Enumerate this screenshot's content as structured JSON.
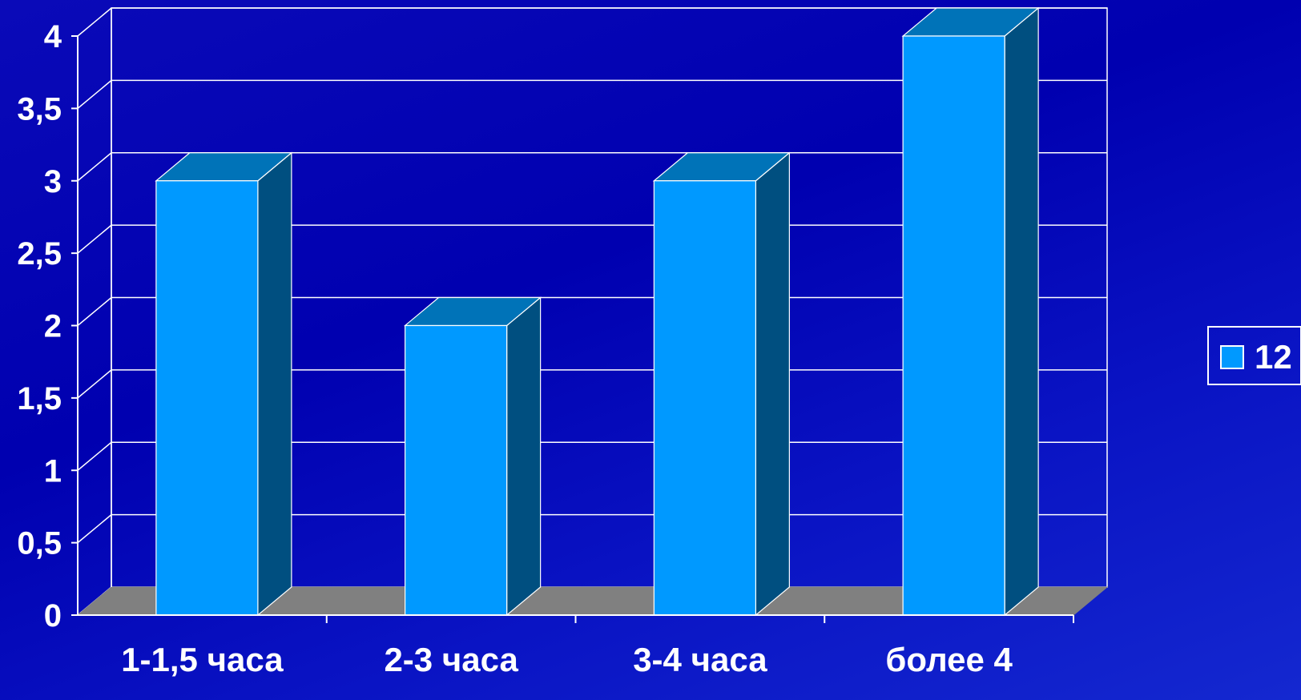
{
  "chart_data": {
    "type": "bar",
    "categories": [
      "1-1,5 часа",
      "2-3 часа",
      "3-4 часа",
      "более 4"
    ],
    "series": [
      {
        "name": "12",
        "values": [
          3,
          2,
          3,
          4
        ]
      }
    ],
    "y_ticks": [
      "0",
      "0,5",
      "1",
      "1,5",
      "2",
      "2,5",
      "3",
      "3,5",
      "4"
    ],
    "ylim": [
      0,
      4
    ],
    "grid": true,
    "legend_position": "right",
    "colors": {
      "bar_front": "#0099ff",
      "bar_top": "#0073b8",
      "bar_side": "#004f80",
      "floor": "#808080",
      "grid": "#ffffff",
      "legend_box": "#0099ff"
    }
  }
}
